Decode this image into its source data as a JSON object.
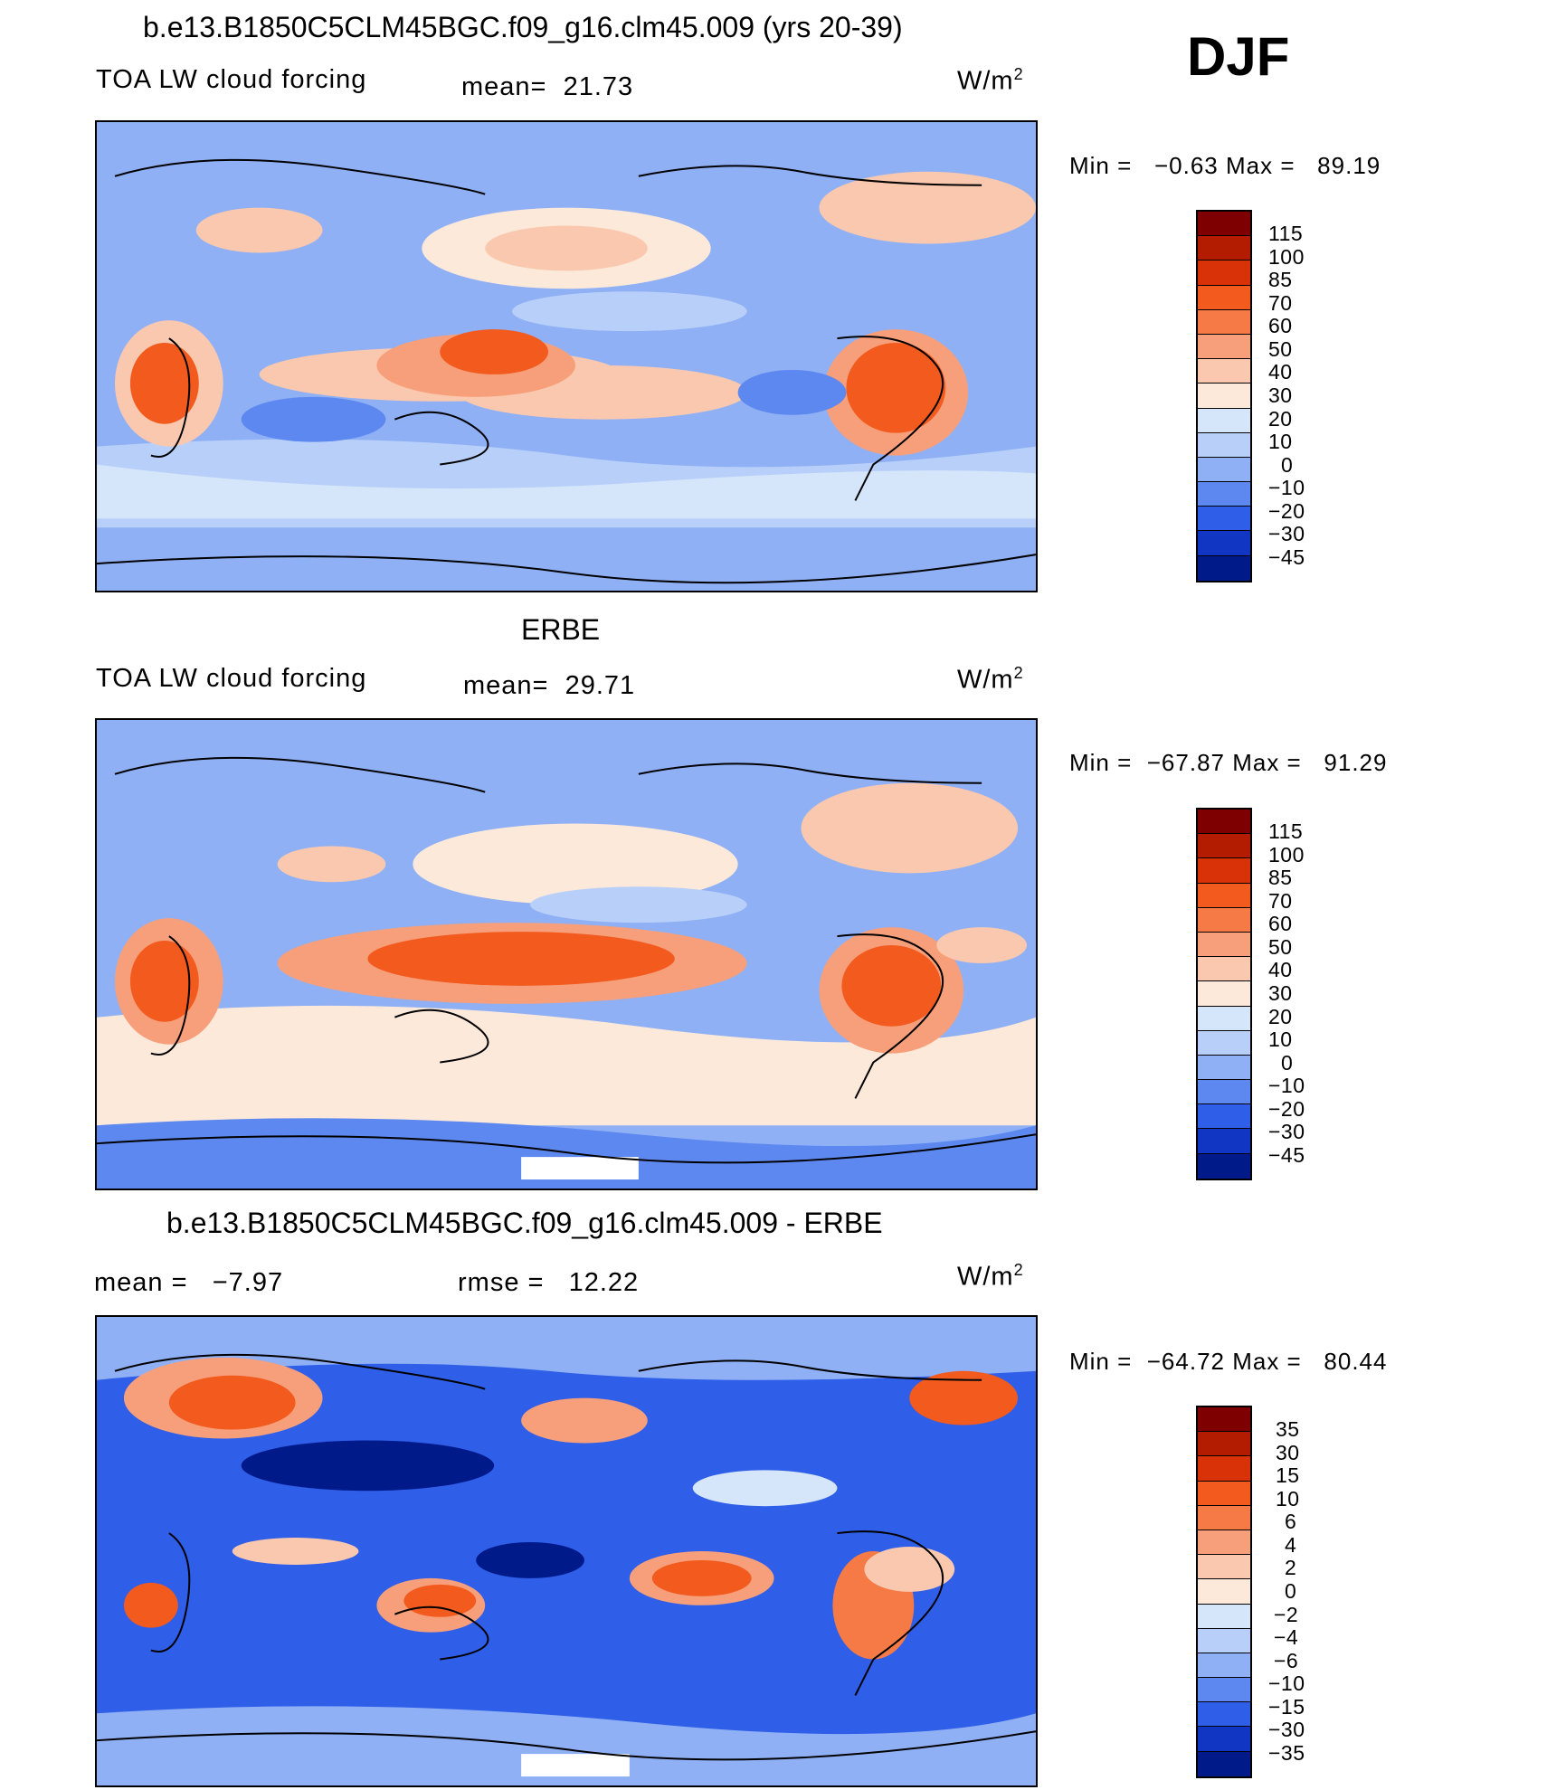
{
  "season": "DJF",
  "panels": [
    {
      "title": "b.e13.B1850C5CLM45BGC.f09_g16.clm45.009 (yrs 20-39)",
      "variable": "TOA LW cloud forcing",
      "stats_left": "",
      "stats_mid": "mean=  21.73",
      "units": "W/m",
      "units_sup": "2",
      "minmax": "Min =   −0.63 Max =   89.19",
      "levels": [
        "115",
        "100",
        "85",
        "70",
        "60",
        "50",
        "40",
        "30",
        "20",
        "10",
        "0",
        "−10",
        "−20",
        "−30",
        "−45"
      ],
      "colors": [
        "#7f0000",
        "#b31c00",
        "#d93208",
        "#f25a1e",
        "#f57a45",
        "#f79f7a",
        "#fac8ae",
        "#fde9da",
        "#d5e6fb",
        "#b8d0f9",
        "#8fb0f5",
        "#5d88f0",
        "#2f5ee8",
        "#1236c4",
        "#001a8a"
      ]
    },
    {
      "title": "ERBE",
      "variable": "TOA LW cloud forcing",
      "stats_left": "",
      "stats_mid": "mean=  29.71",
      "units": "W/m",
      "units_sup": "2",
      "minmax": "Min =  −67.87 Max =   91.29",
      "levels": [
        "115",
        "100",
        "85",
        "70",
        "60",
        "50",
        "40",
        "30",
        "20",
        "10",
        "0",
        "−10",
        "−20",
        "−30",
        "−45"
      ],
      "colors": [
        "#7f0000",
        "#b31c00",
        "#d93208",
        "#f25a1e",
        "#f57a45",
        "#f79f7a",
        "#fac8ae",
        "#fde9da",
        "#d5e6fb",
        "#b8d0f9",
        "#8fb0f5",
        "#5d88f0",
        "#2f5ee8",
        "#1236c4",
        "#001a8a"
      ]
    },
    {
      "title": "b.e13.B1850C5CLM45BGC.f09_g16.clm45.009 - ERBE",
      "variable": "",
      "stats_left": "mean =   −7.97",
      "stats_mid": "rmse =   12.22",
      "units": "W/m",
      "units_sup": "2",
      "minmax": "Min =  −64.72 Max =   80.44",
      "levels": [
        "35",
        "30",
        "15",
        "10",
        "6",
        "4",
        "2",
        "0",
        "−2",
        "−4",
        "−6",
        "−10",
        "−15",
        "−30",
        "−35"
      ],
      "colors": [
        "#7f0000",
        "#b31c00",
        "#d93208",
        "#f25a1e",
        "#f57a45",
        "#f79f7a",
        "#fac8ae",
        "#fde9da",
        "#d5e6fb",
        "#b8d0f9",
        "#8fb0f5",
        "#5d88f0",
        "#2f5ee8",
        "#1236c4",
        "#001a8a"
      ]
    }
  ]
}
